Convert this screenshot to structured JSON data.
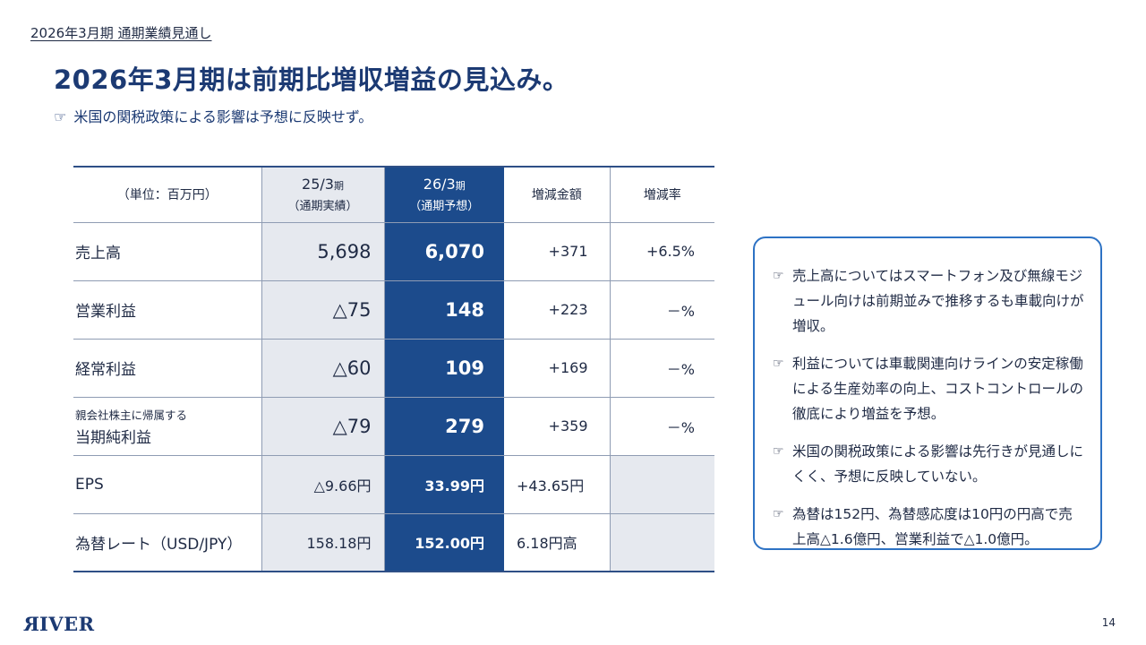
{
  "header": {
    "breadcrumb": "2026年3月期 通期業績見通し",
    "title": "2026年3月期は前期比増収増益の見込み。",
    "subtitle_icon": "pointing-hand-icon",
    "subtitle": "米国の関税政策による影響は予想に反映せず。"
  },
  "table": {
    "unit_label": "（単位：百万円）",
    "columns": {
      "prev": {
        "period": "25/3",
        "suffix": "期",
        "sub": "（通期実績）"
      },
      "forecast": {
        "period": "26/3",
        "suffix": "期",
        "sub": "（通期予想）"
      },
      "diff": "増減金額",
      "rate": "増減率"
    },
    "rows": [
      {
        "label_small": "",
        "label": "売上高",
        "prev": "5,698",
        "forecast": "6,070",
        "diff": "+371",
        "rate": "+6.5%"
      },
      {
        "label_small": "",
        "label": "営業利益",
        "prev": "△75",
        "forecast": "148",
        "diff": "+223",
        "rate": "－%"
      },
      {
        "label_small": "",
        "label": "経常利益",
        "prev": "△60",
        "forecast": "109",
        "diff": "+169",
        "rate": "－%"
      },
      {
        "label_small": "親会社株主に帰属する",
        "label": "当期純利益",
        "prev": "△79",
        "forecast": "279",
        "diff": "+359",
        "rate": "－%"
      },
      {
        "label_small": "",
        "label": "EPS",
        "prev": "△9.66円",
        "forecast": "33.99円",
        "diff": "+43.65円",
        "rate": ""
      },
      {
        "label_small": "",
        "label": "為替レート（USD/JPY）",
        "prev": "158.18円",
        "forecast": "152.00円",
        "diff": "6.18円高",
        "rate": ""
      }
    ]
  },
  "notes": {
    "icon": "pointing-hand-icon",
    "items": [
      "売上高についてはスマートフォン及び無線モジュール向けは前期並みで推移するも車載向けが増収。",
      "利益については車載関連向けラインの安定稼働による生産効率の向上、コストコントロールの徹底により増益を予想。",
      "米国の関税政策による影響は先行きが見通しにくく、予想に反映していない。",
      "為替は152円、為替感応度は10円の円高で売上高△1.6億円、営業利益で△1.0億円。"
    ]
  },
  "footer": {
    "logo": "RIVER",
    "page_number": "14"
  },
  "colors": {
    "title": "#1c3a73",
    "forecast_column": "#1c4b8c",
    "previous_column": "#e6e9ef",
    "note_border": "#2d72c4"
  }
}
